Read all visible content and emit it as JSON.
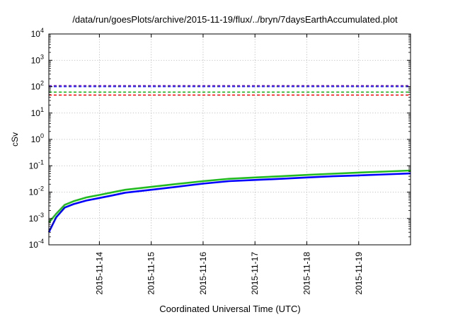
{
  "chart_data": {
    "type": "line",
    "title": "/data/run/goesPlots/archive/2015-11-19/flux/../bryn/7daysEarthAccumulated.plot",
    "xlabel": "Coordinated Universal Time (UTC)",
    "ylabel": "cSv",
    "yscale": "log",
    "ylim": [
      0.0001,
      10000
    ],
    "xlim": [
      "2015-11-13T00:37",
      "2015-11-19T23:59"
    ],
    "grid": true,
    "x_ticks": [
      "2015-11-14",
      "2015-11-15",
      "2015-11-16",
      "2015-11-17",
      "2015-11-18",
      "2015-11-19"
    ],
    "y_ticks": [
      {
        "value": 0.0001,
        "mantissa": "10",
        "exp": "-4"
      },
      {
        "value": 0.001,
        "mantissa": "10",
        "exp": "-3"
      },
      {
        "value": 0.01,
        "mantissa": "10",
        "exp": "-2"
      },
      {
        "value": 0.1,
        "mantissa": "10",
        "exp": "-1"
      },
      {
        "value": 1,
        "mantissa": "10",
        "exp": "0"
      },
      {
        "value": 10,
        "mantissa": "10",
        "exp": "1"
      },
      {
        "value": 100,
        "mantissa": "10",
        "exp": "2"
      },
      {
        "value": 1000,
        "mantissa": "10",
        "exp": "3"
      },
      {
        "value": 10000,
        "mantissa": "10",
        "exp": "4"
      }
    ],
    "thresholds": [
      {
        "value": 110,
        "color": "#7b2fbf"
      },
      {
        "value": 100,
        "color": "#2020ff"
      },
      {
        "value": 62,
        "color": "#22bb22"
      },
      {
        "value": 48,
        "color": "#ff0000"
      }
    ],
    "series": [
      {
        "color": "#22bb22",
        "x": [
          "2015-11-13T00:37",
          "2015-11-13T04:00",
          "2015-11-13T08:00",
          "2015-11-13T12:00",
          "2015-11-13T18:00",
          "2015-11-14T00:00",
          "2015-11-14T06:00",
          "2015-11-14T12:00",
          "2015-11-15T00:00",
          "2015-11-15T12:00",
          "2015-11-16T00:00",
          "2015-11-16T12:00",
          "2015-11-17T00:00",
          "2015-11-17T12:00",
          "2015-11-18T00:00",
          "2015-11-18T12:00",
          "2015-11-19T00:00",
          "2015-11-19T12:00",
          "2015-11-19T23:59"
        ],
        "values": [
          0.0007,
          0.0015,
          0.0033,
          0.0045,
          0.0063,
          0.0078,
          0.0098,
          0.0123,
          0.0158,
          0.0205,
          0.026,
          0.032,
          0.036,
          0.04,
          0.045,
          0.05,
          0.055,
          0.06,
          0.066
        ]
      },
      {
        "color": "#0000ff",
        "x": [
          "2015-11-13T00:37",
          "2015-11-13T04:00",
          "2015-11-13T08:00",
          "2015-11-13T12:00",
          "2015-11-13T18:00",
          "2015-11-14T00:00",
          "2015-11-14T06:00",
          "2015-11-14T12:00",
          "2015-11-15T00:00",
          "2015-11-15T12:00",
          "2015-11-16T00:00",
          "2015-11-16T12:00",
          "2015-11-17T00:00",
          "2015-11-17T12:00",
          "2015-11-18T00:00",
          "2015-11-18T12:00",
          "2015-11-19T00:00",
          "2015-11-19T12:00",
          "2015-11-19T23:59"
        ],
        "values": [
          0.0003,
          0.0011,
          0.0026,
          0.0035,
          0.0048,
          0.006,
          0.0075,
          0.0095,
          0.0123,
          0.016,
          0.021,
          0.026,
          0.029,
          0.032,
          0.036,
          0.04,
          0.043,
          0.047,
          0.051
        ]
      }
    ]
  }
}
